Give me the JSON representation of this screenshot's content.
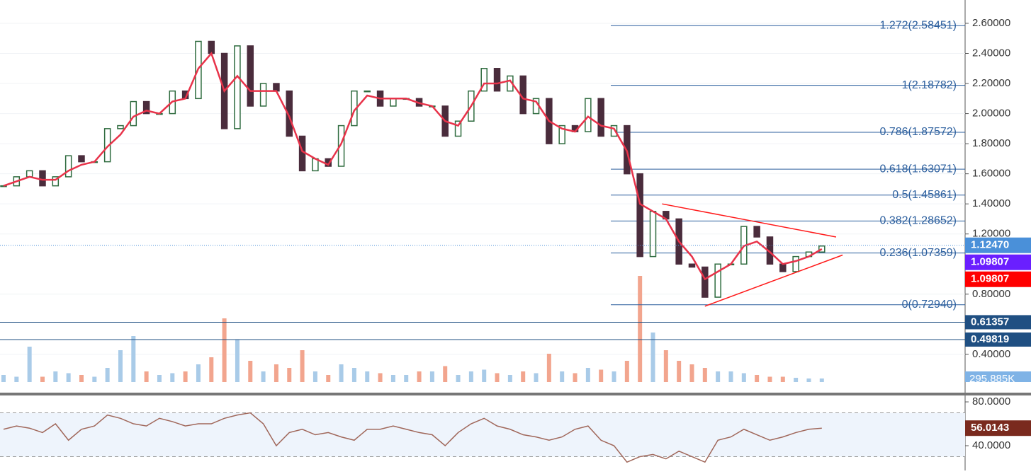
{
  "chart_data": {
    "type": "candlestick",
    "closes": [
      1.52,
      1.58,
      1.62,
      1.52,
      1.58,
      1.72,
      1.68,
      1.68,
      1.9,
      1.92,
      2.08,
      2.0,
      2.0,
      2.15,
      2.1,
      2.48,
      2.4,
      1.9,
      2.45,
      2.05,
      2.2,
      2.15,
      1.85,
      1.62,
      1.7,
      1.65,
      1.92,
      2.15,
      2.15,
      2.05,
      2.1,
      2.1,
      2.05,
      2.05,
      1.85,
      1.95,
      2.15,
      2.3,
      2.15,
      2.25,
      2.0,
      2.1,
      1.8,
      1.92,
      1.88,
      2.1,
      1.85,
      1.92,
      1.6,
      1.05,
      1.35,
      1.3,
      1.0,
      0.98,
      0.78,
      1.0,
      1.0,
      1.25,
      1.18,
      1.0,
      0.95,
      1.05,
      1.08,
      1.12
    ],
    "up_color": "#2e6b3e",
    "down_color": "#4a2c3c",
    "ma": {
      "color": "#e8334a",
      "values": [
        1.52,
        1.55,
        1.58,
        1.56,
        1.56,
        1.62,
        1.66,
        1.68,
        1.78,
        1.86,
        1.98,
        2.02,
        2.0,
        2.08,
        2.1,
        2.3,
        2.4,
        2.15,
        2.25,
        2.15,
        2.15,
        2.15,
        1.98,
        1.75,
        1.7,
        1.66,
        1.8,
        2.02,
        2.12,
        2.1,
        2.1,
        2.1,
        2.07,
        2.05,
        1.95,
        1.92,
        2.05,
        2.2,
        2.2,
        2.22,
        2.1,
        2.08,
        1.95,
        1.9,
        1.88,
        1.98,
        1.92,
        1.9,
        1.75,
        1.4,
        1.35,
        1.3,
        1.15,
        1.05,
        0.9,
        0.95,
        1.0,
        1.12,
        1.15,
        1.08,
        1.0,
        1.02,
        1.05,
        1.1
      ]
    },
    "ylim": [
      0.216,
      2.755
    ],
    "yticks": [
      {
        "value": 0.4,
        "label": "0.40000"
      },
      {
        "value": 0.8,
        "label": "0.80000"
      },
      {
        "value": 1.2,
        "label": "1.20000"
      },
      {
        "value": 1.4,
        "label": "1.40000"
      },
      {
        "value": 1.6,
        "label": "1.60000"
      },
      {
        "value": 1.8,
        "label": "1.80000"
      },
      {
        "value": 2.0,
        "label": "2.00000"
      },
      {
        "value": 2.2,
        "label": "2.20000"
      },
      {
        "value": 2.4,
        "label": "2.40000"
      },
      {
        "value": 2.6,
        "label": "2.60000"
      }
    ],
    "grid": true,
    "fib_color": "#2c5f9e",
    "fib_levels": [
      {
        "value": 2.58451,
        "label": "1.272(2.58451)"
      },
      {
        "value": 2.18782,
        "label": "1(2.18782)"
      },
      {
        "value": 1.87572,
        "label": "0.786(1.87572)"
      },
      {
        "value": 1.63071,
        "label": "0.618(1.63071)"
      },
      {
        "value": 1.45861,
        "label": "0.5(1.45861)"
      },
      {
        "value": 1.28652,
        "label": "0.382(1.28652)"
      },
      {
        "value": 1.07359,
        "label": "0.236(1.07359)"
      },
      {
        "value": 0.7294,
        "label": "0(0.72940)"
      }
    ],
    "price_lines": [
      {
        "value": 0.61357,
        "label": "0.61357"
      },
      {
        "value": 0.49819,
        "label": "0.49819"
      }
    ],
    "price_line_color": "#1f4f82",
    "last_price": {
      "value": 1.1247,
      "label": "1.12470",
      "color": "#4a90d9"
    },
    "markers": [
      {
        "value": 1.09807,
        "label": "1.09807",
        "color": "#6a1fff"
      },
      {
        "value": 1.09807,
        "label": "1.09807",
        "color": "#ff0000"
      }
    ],
    "trendline_color": "#ff1a1a",
    "trendlines": [
      {
        "x": [
          50.7,
          64.1
        ],
        "y": [
          1.4,
          1.18
        ]
      },
      {
        "x": [
          54,
          64.6
        ],
        "y": [
          0.72,
          1.06
        ]
      }
    ],
    "volume": {
      "ylim": [
        0,
        3000
      ],
      "label": "295.885K",
      "up_color": "#a9cbe8",
      "down_color": "#f2a58e",
      "values": [
        200,
        150,
        1000,
        150,
        300,
        250,
        200,
        150,
        400,
        900,
        1300,
        300,
        200,
        250,
        300,
        500,
        700,
        1800,
        1200,
        600,
        300,
        500,
        400,
        900,
        300,
        200,
        500,
        400,
        300,
        250,
        200,
        200,
        300,
        300,
        450,
        200,
        300,
        350,
        250,
        200,
        300,
        250,
        800,
        300,
        250,
        400,
        350,
        300,
        600,
        3000,
        1400,
        900,
        600,
        500,
        400,
        300,
        300,
        250,
        200,
        150,
        150,
        120,
        100,
        100
      ]
    },
    "rsi": {
      "color": "#a0675a",
      "ylim": [
        17.4,
        85.2
      ],
      "bands": [
        30,
        70
      ],
      "yticks": [
        {
          "value": 80,
          "label": "80.0000"
        },
        {
          "value": 40,
          "label": "40.0000"
        }
      ],
      "current": {
        "value": 56.0143,
        "label": "56.0143"
      },
      "values": [
        55,
        58,
        56,
        52,
        60,
        45,
        55,
        58,
        68,
        65,
        60,
        58,
        65,
        62,
        58,
        60,
        60,
        65,
        68,
        70,
        60,
        40,
        52,
        55,
        50,
        52,
        48,
        45,
        55,
        55,
        58,
        55,
        52,
        50,
        40,
        52,
        60,
        65,
        58,
        55,
        50,
        48,
        45,
        48,
        55,
        58,
        45,
        40,
        25,
        30,
        32,
        28,
        35,
        30,
        25,
        45,
        48,
        55,
        50,
        45,
        48,
        52,
        55,
        56
      ]
    }
  }
}
